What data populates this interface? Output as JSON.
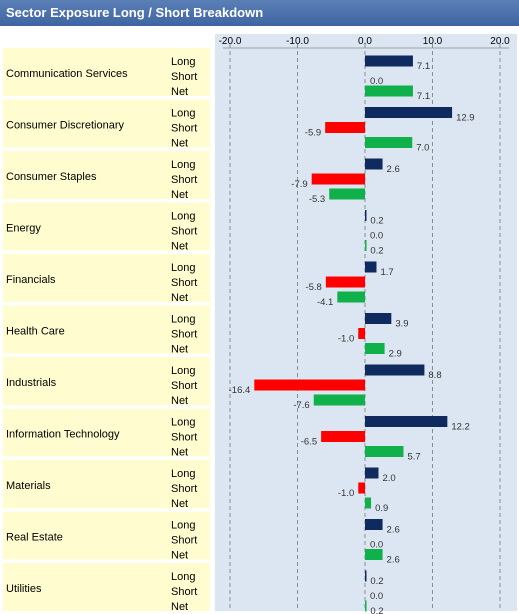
{
  "title": "Sector Exposure Long / Short Breakdown",
  "colors": {
    "long": "#0e2a5e",
    "short": "#ff0000",
    "net": "#10b04a",
    "sector_bg": "#fffdd0",
    "plot_bg": "#dce6f2",
    "header_bar": "#3e64a3"
  },
  "chart_data": {
    "type": "bar",
    "orientation": "horizontal",
    "title": "Sector Exposure Long / Short Breakdown",
    "xlim": [
      -20,
      20
    ],
    "xticks": [
      "-20.0",
      "-10.0",
      "0.0",
      "10.0",
      "20.0"
    ],
    "tick_values": [
      -20,
      -10,
      0,
      10,
      20
    ],
    "row_labels": [
      "Long",
      "Short",
      "Net"
    ],
    "grid": true,
    "categories": [
      "Communication Services",
      "Consumer Discretionary",
      "Consumer Staples",
      "Energy",
      "Financials",
      "Health Care",
      "Industrials",
      "Information Technology",
      "Materials",
      "Real Estate",
      "Utilities"
    ],
    "series": [
      {
        "name": "Long",
        "values": [
          7.1,
          12.9,
          2.6,
          0.2,
          1.7,
          3.9,
          8.8,
          12.2,
          2.0,
          2.6,
          0.2
        ]
      },
      {
        "name": "Short",
        "values": [
          0.0,
          -5.9,
          -7.9,
          0.0,
          -5.8,
          -1.0,
          -16.4,
          -6.5,
          -1.0,
          0.0,
          0.0
        ]
      },
      {
        "name": "Net",
        "values": [
          7.1,
          7.0,
          -5.3,
          0.2,
          -4.1,
          2.9,
          -7.6,
          5.7,
          0.9,
          2.6,
          0.2
        ]
      }
    ]
  }
}
